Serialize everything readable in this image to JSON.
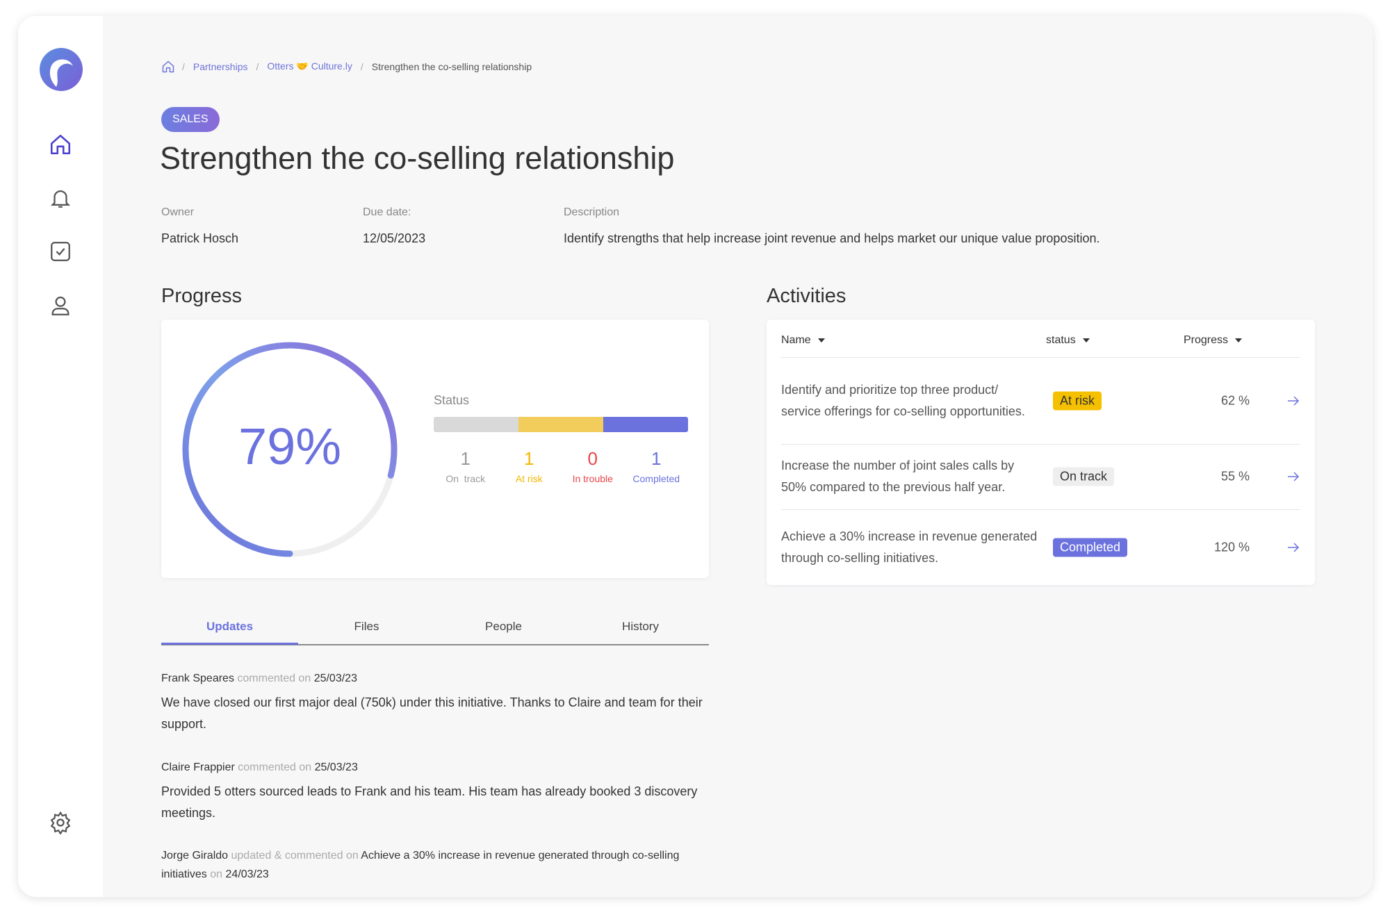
{
  "breadcrumb": [
    "Partnerships",
    "Otters 🤝 Culture.ly",
    "Strengthen the co-selling relationship"
  ],
  "tag": "SALES",
  "title": "Strengthen the co-selling relationship",
  "fields": [
    {
      "label": "Owner",
      "value": "Patrick Hosch"
    },
    {
      "label": "Due date:",
      "value": "12/05/2023"
    },
    {
      "label": "Description",
      "value": "Identify strengths that help increase joint revenue and helps market our unique value proposition."
    }
  ],
  "progress": {
    "title": "Progress",
    "percent": 79,
    "percent_label": "79%",
    "status_title": "Status",
    "statuses": [
      {
        "name": "On  track",
        "count": 1,
        "color": "#d9d9d9",
        "text_color": "#9a9a9a"
      },
      {
        "name": "At risk",
        "count": 1,
        "color": "#f2cd5c",
        "text_color": "#f2b800"
      },
      {
        "name": "In trouble",
        "count": 0,
        "color": "#e8474c",
        "text_color": "#e8474c"
      },
      {
        "name": "Completed",
        "count": 1,
        "color": "#6b72de",
        "text_color": "#6b72de"
      }
    ]
  },
  "activities": {
    "title": "Activities",
    "columns": [
      "Name",
      "status",
      "Progress"
    ],
    "rows": [
      {
        "name": "Identify and prioritize top three product/ service offerings for co-selling opportunities.",
        "status": "At risk",
        "status_bg": "#f5c000",
        "status_fg": "#333333",
        "progress": "62 %"
      },
      {
        "name": "Increase the number of joint sales calls by 50% compared to the previous half year.",
        "status": "On track",
        "status_bg": "#eeeeee",
        "status_fg": "#333333",
        "progress": "55 %"
      },
      {
        "name": "Achieve a 30% increase in revenue generated through co-selling initiatives.",
        "status": "Completed",
        "status_bg": "#6b72de",
        "status_fg": "#ffffff",
        "progress": "120 %"
      }
    ]
  },
  "tabs": [
    "Updates",
    "Files",
    "People",
    "History"
  ],
  "active_tab": 0,
  "updates": [
    {
      "author": "Frank Speares",
      "action": "commented on",
      "date": "25/03/23",
      "text": "We have closed our first major deal (750k) under this initiative. Thanks to Claire and team for their support."
    },
    {
      "author": "Claire Frappier",
      "action": "commented on",
      "date": "25/03/23",
      "text": "Provided 5 otters sourced leads to Frank and his team. His team has already booked 3 discovery meetings."
    },
    {
      "author": "Jorge Giraldo",
      "action": "updated & commented on",
      "target": "Achieve a 30% increase in revenue generated through co-selling initiatives",
      "on": "on",
      "date": "24/03/23"
    }
  ]
}
